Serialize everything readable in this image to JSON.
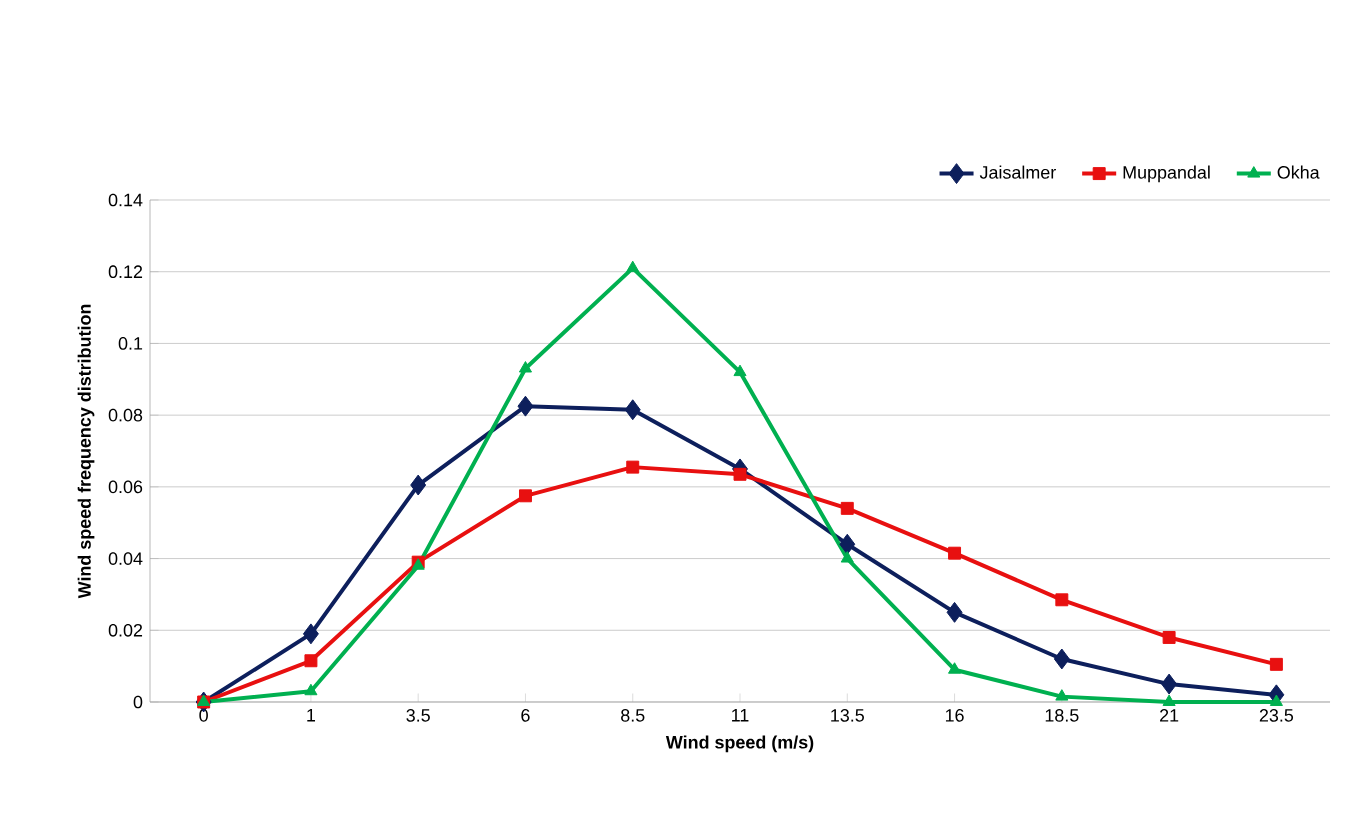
{
  "chart_data": {
    "type": "line",
    "xlabel": "Wind speed (m/s)",
    "ylabel": "Wind speed frequency distribution",
    "categories": [
      "0",
      "1",
      "3.5",
      "6",
      "8.5",
      "11",
      "13.5",
      "16",
      "18.5",
      "21",
      "23.5"
    ],
    "series": [
      {
        "name": "Jaisalmer",
        "color": "#0d1f5c",
        "marker": "diamond",
        "values": [
          0,
          0.019,
          0.0605,
          0.0825,
          0.0815,
          0.065,
          0.044,
          0.025,
          0.012,
          0.005,
          0.002
        ]
      },
      {
        "name": "Muppandal",
        "color": "#e81010",
        "marker": "square",
        "values": [
          0,
          0.0115,
          0.039,
          0.0575,
          0.0655,
          0.0635,
          0.054,
          0.0415,
          0.0285,
          0.018,
          0.0105
        ]
      },
      {
        "name": "Okha",
        "color": "#00b050",
        "marker": "triangle",
        "values": [
          0,
          0.003,
          0.038,
          0.093,
          0.121,
          0.092,
          0.04,
          0.009,
          0.0015,
          0,
          0
        ]
      }
    ],
    "ylim": [
      0,
      0.14
    ],
    "yticks": [
      0,
      0.02,
      0.04,
      0.06,
      0.08,
      0.1,
      0.12,
      0.14
    ],
    "grid": "y",
    "legend": "top right",
    "line_style": "solid"
  }
}
